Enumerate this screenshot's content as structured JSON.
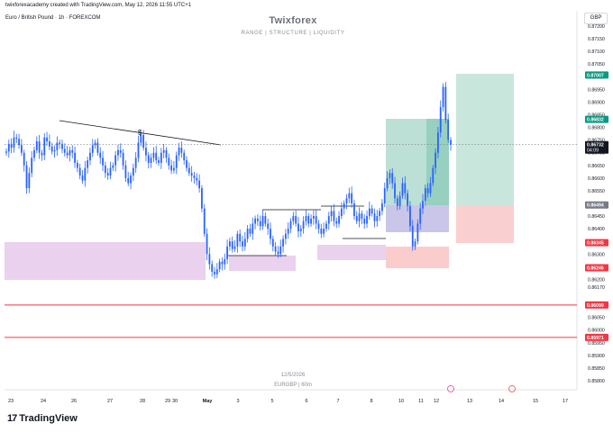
{
  "header": {
    "attribution": "twixforexacademy created with TradingView.com, May 12, 2026 11:55 UTC+1",
    "symbol_line": "Euro / British Pound · 1h · FOREXCOM",
    "currency": "GBP"
  },
  "watermark": {
    "title": "Twixforex",
    "subtitle": "RANGE  |  STRUCTURE  |  LIQUIDITY",
    "date": "12/5/2026",
    "symbol": "EURGBP | 60m"
  },
  "brand": {
    "logo": "17",
    "name": "TradingView"
  },
  "chart_data": {
    "type": "candlestick",
    "y_axis": {
      "min": 0.8578,
      "max": 0.8722,
      "ticks": [
        "0.87200",
        "0.87150",
        "0.87100",
        "0.87050",
        "0.87000",
        "0.86950",
        "0.86900",
        "0.86850",
        "0.86800",
        "0.86750",
        "0.86700",
        "0.86650",
        "0.86600",
        "0.86550",
        "0.86500",
        "0.86450",
        "0.86400",
        "0.86350",
        "0.86300",
        "0.86250",
        "0.86200",
        "0.86170",
        "0.86100",
        "0.86050",
        "0.86000",
        "0.85950",
        "0.85900",
        "0.85850",
        "0.85800"
      ]
    },
    "x_axis": {
      "ticks": [
        "23",
        "24",
        "26",
        "27",
        "28",
        "29",
        "30",
        "May",
        "3",
        "5",
        "6",
        "7",
        "8",
        "10",
        "11",
        "12",
        "13",
        "14",
        "15",
        "17"
      ]
    },
    "price_labels": [
      {
        "value": "0.87007",
        "color": "#089981"
      },
      {
        "value": "0.86832",
        "color": "#089981"
      },
      {
        "value": "0.86732",
        "sub": "04:09",
        "color": "#131722"
      },
      {
        "value": "0.86494",
        "color": "#787b86"
      },
      {
        "value": "0.86345",
        "color": "#f23645"
      },
      {
        "value": "0.86246",
        "color": "#f23645"
      },
      {
        "value": "0.86099",
        "color": "#f23645"
      },
      {
        "value": "0.85971",
        "color": "#f23645"
      }
    ],
    "current_price": 0.86732,
    "horizontal_lines": [
      0.86099,
      0.85971
    ],
    "trendline_annotation": "$",
    "series": [
      {
        "name": "",
        "close": [
          0.86705,
          0.86735,
          0.8672,
          0.8676,
          0.86755,
          0.8673,
          0.867,
          0.8665,
          0.8656,
          0.8662,
          0.8668,
          0.8671,
          0.86745,
          0.867,
          0.8669,
          0.8676,
          0.86745,
          0.86725,
          0.86705,
          0.8671,
          0.8674,
          0.86735,
          0.86715,
          0.867,
          0.8669,
          0.8671,
          0.867,
          0.8666,
          0.8664,
          0.8661,
          0.8659,
          0.8664,
          0.8667,
          0.867,
          0.8673,
          0.8674,
          0.867,
          0.8668,
          0.8665,
          0.8662,
          0.8661,
          0.8664,
          0.8665,
          0.8669,
          0.8671,
          0.867,
          0.8665,
          0.866,
          0.8658,
          0.8661,
          0.8664,
          0.8668,
          0.8674,
          0.8677,
          0.8672,
          0.8669,
          0.8666,
          0.8668,
          0.867,
          0.8667,
          0.8666,
          0.867,
          0.8671,
          0.8668,
          0.8665,
          0.8663,
          0.8664,
          0.8669,
          0.8672,
          0.867,
          0.8667,
          0.8664,
          0.8662,
          0.8661,
          0.866,
          0.8659,
          0.8656,
          0.8648,
          0.8638,
          0.863,
          0.8626,
          0.8623,
          0.8622,
          0.8624,
          0.8627,
          0.8626,
          0.8628,
          0.8633,
          0.8635,
          0.8632,
          0.8633,
          0.8638,
          0.8635,
          0.8633,
          0.8636,
          0.864,
          0.8638,
          0.8642,
          0.8644,
          0.8643,
          0.8641,
          0.8645,
          0.8642,
          0.864,
          0.8636,
          0.8633,
          0.8631,
          0.863,
          0.8633,
          0.8636,
          0.8638,
          0.864,
          0.8643,
          0.8645,
          0.8642,
          0.8639,
          0.864,
          0.8643,
          0.8645,
          0.8642,
          0.8644,
          0.8645,
          0.8642,
          0.864,
          0.8638,
          0.864,
          0.8642,
          0.8645,
          0.8647,
          0.8643,
          0.8642,
          0.8645,
          0.8648,
          0.865,
          0.8652,
          0.8654,
          0.865,
          0.8645,
          0.8643,
          0.8646,
          0.8644,
          0.8642,
          0.8645,
          0.8648,
          0.8646,
          0.8643,
          0.8645,
          0.8647,
          0.865,
          0.8656,
          0.866,
          0.8662,
          0.8658,
          0.8652,
          0.8649,
          0.8653,
          0.8658,
          0.8654,
          0.8649,
          0.8641,
          0.8633,
          0.8635,
          0.8642,
          0.8648,
          0.8651,
          0.8656,
          0.8654,
          0.8658,
          0.8664,
          0.867,
          0.8678,
          0.8688,
          0.8696,
          0.8683,
          0.8675,
          0.86732
        ]
      }
    ],
    "zones": [
      {
        "label": "demand",
        "color": "#e1bee7"
      },
      {
        "label": "target",
        "color": "#a5d6c7"
      },
      {
        "label": "stop",
        "color": "#f8bbbb"
      }
    ]
  }
}
